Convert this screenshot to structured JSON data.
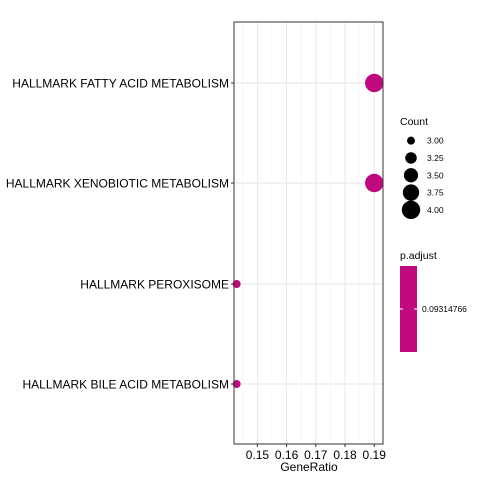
{
  "chart_data": {
    "type": "scatter",
    "title": "",
    "xlabel": "GeneRatio",
    "ylabel": "",
    "xlim": [
      0.142,
      0.193
    ],
    "x_ticks": [
      0.15,
      0.16,
      0.17,
      0.18,
      0.19
    ],
    "x_tick_labels": [
      "0.15",
      "0.16",
      "0.17",
      "0.18",
      "0.19"
    ],
    "grid": true,
    "categories": [
      "HALLMARK FATTY ACID METABOLISM",
      "HALLMARK XENOBIOTIC METABOLISM",
      "HALLMARK PEROXISOME",
      "HALLMARK BILE ACID METABOLISM"
    ],
    "points": [
      {
        "term": "HALLMARK FATTY ACID METABOLISM",
        "gene_ratio": 0.19,
        "count": 4,
        "p_adjust": 0.09314766
      },
      {
        "term": "HALLMARK XENOBIOTIC METABOLISM",
        "gene_ratio": 0.19,
        "count": 4,
        "p_adjust": 0.09314766
      },
      {
        "term": "HALLMARK PEROXISOME",
        "gene_ratio": 0.1429,
        "count": 3,
        "p_adjust": 0.09314766
      },
      {
        "term": "HALLMARK BILE ACID METABOLISM",
        "gene_ratio": 0.1429,
        "count": 3,
        "p_adjust": 0.09314766
      }
    ],
    "point_color": "#C0087F",
    "legend_placement": "right",
    "size_legend": {
      "title": "Count",
      "breaks": [
        3.0,
        3.25,
        3.5,
        3.75,
        4.0
      ],
      "labels": [
        "3.00",
        "3.25",
        "3.50",
        "3.75",
        "4.00"
      ]
    },
    "color_legend": {
      "title": "p.adjust",
      "labels": [
        "0.09314766"
      ],
      "color": "#C0087F"
    }
  }
}
